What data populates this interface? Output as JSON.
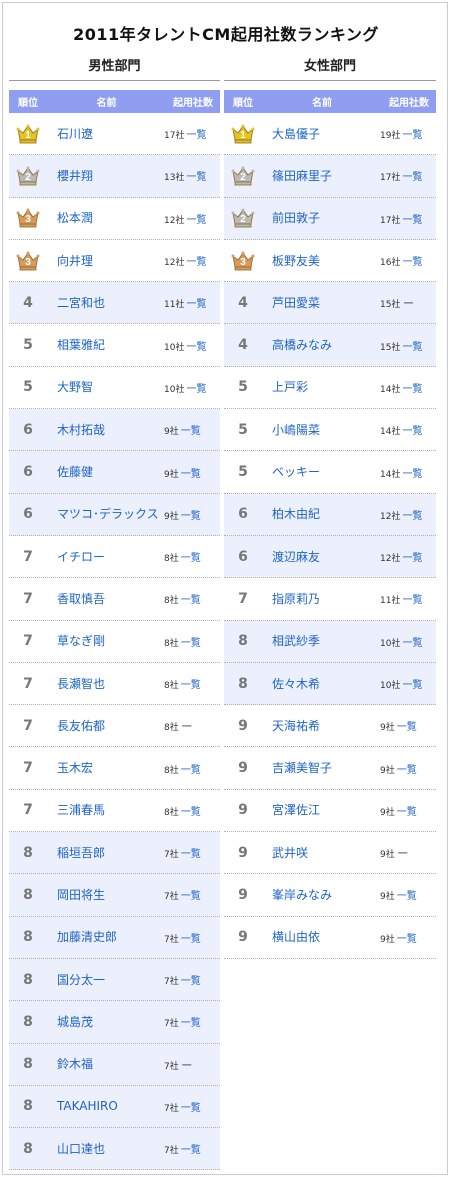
{
  "title": "2011年タレントCM起用社数ランキング",
  "headers": {
    "rank": "順位",
    "name": "名前",
    "count": "起用社数"
  },
  "list_label": "一覧",
  "dash_label": "一",
  "colors": {
    "gold": "#e8c21e",
    "silver": "#b9b9b9",
    "bronze": "#d89a5e",
    "header": "#8f9ef0",
    "link": "#1e64c8"
  },
  "male": {
    "title": "男性部門",
    "rows": [
      {
        "rank": "1",
        "medal": "gold",
        "name": "石川遼",
        "count": "17社",
        "link": true,
        "shaded": false
      },
      {
        "rank": "2",
        "medal": "silver",
        "name": "櫻井翔",
        "count": "13社",
        "link": true,
        "shaded": true
      },
      {
        "rank": "3",
        "medal": "bronze",
        "name": "松本潤",
        "count": "12社",
        "link": true,
        "shaded": false
      },
      {
        "rank": "3",
        "medal": "bronze",
        "name": "向井理",
        "count": "12社",
        "link": true,
        "shaded": false
      },
      {
        "rank": "4",
        "medal": "",
        "name": "二宮和也",
        "count": "11社",
        "link": true,
        "shaded": true
      },
      {
        "rank": "5",
        "medal": "",
        "name": "相葉雅紀",
        "count": "10社",
        "link": true,
        "shaded": false
      },
      {
        "rank": "5",
        "medal": "",
        "name": "大野智",
        "count": "10社",
        "link": true,
        "shaded": false
      },
      {
        "rank": "6",
        "medal": "",
        "name": "木村拓哉",
        "count": "9社",
        "link": true,
        "shaded": true
      },
      {
        "rank": "6",
        "medal": "",
        "name": "佐藤健",
        "count": "9社",
        "link": true,
        "shaded": true
      },
      {
        "rank": "6",
        "medal": "",
        "name": "マツコ･デラックス",
        "count": "9社",
        "link": true,
        "shaded": true
      },
      {
        "rank": "7",
        "medal": "",
        "name": "イチロー",
        "count": "8社",
        "link": true,
        "shaded": false
      },
      {
        "rank": "7",
        "medal": "",
        "name": "香取慎吾",
        "count": "8社",
        "link": true,
        "shaded": false
      },
      {
        "rank": "7",
        "medal": "",
        "name": "草なぎ剛",
        "count": "8社",
        "link": true,
        "shaded": false
      },
      {
        "rank": "7",
        "medal": "",
        "name": "長瀬智也",
        "count": "8社",
        "link": true,
        "shaded": false
      },
      {
        "rank": "7",
        "medal": "",
        "name": "長友佑都",
        "count": "8社",
        "link": false,
        "shaded": false
      },
      {
        "rank": "7",
        "medal": "",
        "name": "玉木宏",
        "count": "8社",
        "link": true,
        "shaded": false
      },
      {
        "rank": "7",
        "medal": "",
        "name": "三浦春馬",
        "count": "8社",
        "link": true,
        "shaded": false
      },
      {
        "rank": "8",
        "medal": "",
        "name": "稲垣吾郎",
        "count": "7社",
        "link": true,
        "shaded": true
      },
      {
        "rank": "8",
        "medal": "",
        "name": "岡田将生",
        "count": "7社",
        "link": true,
        "shaded": true
      },
      {
        "rank": "8",
        "medal": "",
        "name": "加藤清史郎",
        "count": "7社",
        "link": true,
        "shaded": true
      },
      {
        "rank": "8",
        "medal": "",
        "name": "国分太一",
        "count": "7社",
        "link": true,
        "shaded": true
      },
      {
        "rank": "8",
        "medal": "",
        "name": "城島茂",
        "count": "7社",
        "link": true,
        "shaded": true
      },
      {
        "rank": "8",
        "medal": "",
        "name": "鈴木福",
        "count": "7社",
        "link": false,
        "shaded": true
      },
      {
        "rank": "8",
        "medal": "",
        "name": "TAKAHIRO",
        "count": "7社",
        "link": true,
        "shaded": true
      },
      {
        "rank": "8",
        "medal": "",
        "name": "山口達也",
        "count": "7社",
        "link": true,
        "shaded": true
      }
    ]
  },
  "female": {
    "title": "女性部門",
    "rows": [
      {
        "rank": "1",
        "medal": "gold",
        "name": "大島優子",
        "count": "19社",
        "link": true,
        "shaded": false
      },
      {
        "rank": "2",
        "medal": "silver",
        "name": "篠田麻里子",
        "count": "17社",
        "link": true,
        "shaded": true
      },
      {
        "rank": "2",
        "medal": "silver",
        "name": "前田敦子",
        "count": "17社",
        "link": true,
        "shaded": true
      },
      {
        "rank": "3",
        "medal": "bronze",
        "name": "板野友美",
        "count": "16社",
        "link": true,
        "shaded": false
      },
      {
        "rank": "4",
        "medal": "",
        "name": "芦田愛菜",
        "count": "15社",
        "link": false,
        "shaded": true
      },
      {
        "rank": "4",
        "medal": "",
        "name": "高橋みなみ",
        "count": "15社",
        "link": true,
        "shaded": true
      },
      {
        "rank": "5",
        "medal": "",
        "name": "上戸彩",
        "count": "14社",
        "link": true,
        "shaded": false
      },
      {
        "rank": "5",
        "medal": "",
        "name": "小嶋陽菜",
        "count": "14社",
        "link": true,
        "shaded": false
      },
      {
        "rank": "5",
        "medal": "",
        "name": "ベッキー",
        "count": "14社",
        "link": true,
        "shaded": false
      },
      {
        "rank": "6",
        "medal": "",
        "name": "柏木由紀",
        "count": "12社",
        "link": true,
        "shaded": true
      },
      {
        "rank": "6",
        "medal": "",
        "name": "渡辺麻友",
        "count": "12社",
        "link": true,
        "shaded": true
      },
      {
        "rank": "7",
        "medal": "",
        "name": "指原莉乃",
        "count": "11社",
        "link": true,
        "shaded": false
      },
      {
        "rank": "8",
        "medal": "",
        "name": "相武紗季",
        "count": "10社",
        "link": true,
        "shaded": true
      },
      {
        "rank": "8",
        "medal": "",
        "name": "佐々木希",
        "count": "10社",
        "link": true,
        "shaded": true
      },
      {
        "rank": "9",
        "medal": "",
        "name": "天海祐希",
        "count": "9社",
        "link": true,
        "shaded": false
      },
      {
        "rank": "9",
        "medal": "",
        "name": "吉瀬美智子",
        "count": "9社",
        "link": true,
        "shaded": false
      },
      {
        "rank": "9",
        "medal": "",
        "name": "宮澤佐江",
        "count": "9社",
        "link": true,
        "shaded": false
      },
      {
        "rank": "9",
        "medal": "",
        "name": "武井咲",
        "count": "9社",
        "link": false,
        "shaded": false
      },
      {
        "rank": "9",
        "medal": "",
        "name": "峯岸みなみ",
        "count": "9社",
        "link": true,
        "shaded": false
      },
      {
        "rank": "9",
        "medal": "",
        "name": "横山由依",
        "count": "9社",
        "link": true,
        "shaded": false
      }
    ]
  }
}
